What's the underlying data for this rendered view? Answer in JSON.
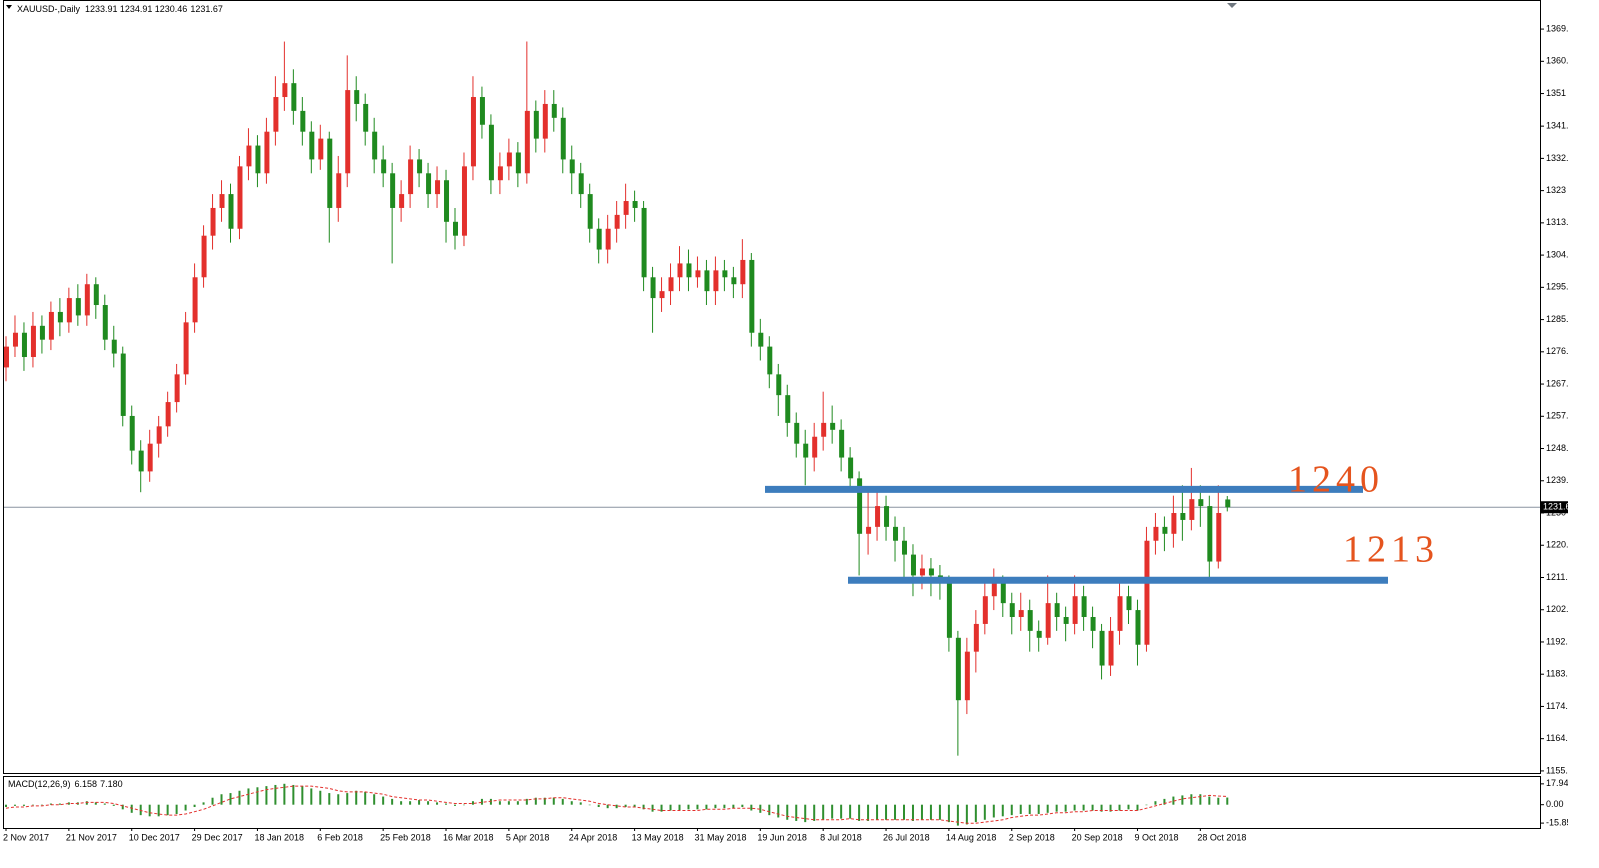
{
  "chart_data": {
    "type": "candlestick",
    "title": "XAUUSD-,Daily",
    "categories": [
      "2 Nov 2017",
      null,
      null,
      null,
      null,
      null,
      null,
      "21 Nov 2017",
      null,
      null,
      null,
      null,
      null,
      null,
      "10 Dec 2017",
      null,
      null,
      null,
      null,
      null,
      null,
      "29 Dec 2017",
      null,
      null,
      null,
      null,
      null,
      null,
      "18 Jan 2018",
      null,
      null,
      null,
      null,
      null,
      null,
      "6 Feb 2018",
      null,
      null,
      null,
      null,
      null,
      null,
      "25 Feb 2018",
      null,
      null,
      null,
      null,
      null,
      null,
      "16 Mar 2018",
      null,
      null,
      null,
      null,
      null,
      null,
      "5 Apr 2018",
      null,
      null,
      null,
      null,
      null,
      null,
      "24 Apr 2018",
      null,
      null,
      null,
      null,
      null,
      null,
      "13 May 2018",
      null,
      null,
      null,
      null,
      null,
      null,
      "31 May 2018",
      null,
      null,
      null,
      null,
      null,
      null,
      "19 Jun 2018",
      null,
      null,
      null,
      null,
      null,
      null,
      "8 Jul 2018",
      null,
      null,
      null,
      null,
      null,
      null,
      "26 Jul 2018",
      null,
      null,
      null,
      null,
      null,
      null,
      "14 Aug 2018",
      null,
      null,
      null,
      null,
      null,
      null,
      "2 Sep 2018",
      null,
      null,
      null,
      null,
      null,
      null,
      "20 Sep 2018",
      null,
      null,
      null,
      null,
      null,
      null,
      "9 Oct 2018",
      null,
      null,
      null,
      null,
      null,
      null,
      "28 Oct 2018",
      null,
      null,
      null
    ],
    "open": [
      1272,
      1278,
      1282,
      1275,
      1284,
      1280,
      1288,
      1285,
      1292,
      1287,
      1296,
      1290,
      1280,
      1276,
      1258,
      1248,
      1242,
      1250,
      1255,
      1262,
      1270,
      1285,
      1298,
      1310,
      1318,
      1322,
      1312,
      1330,
      1336,
      1328,
      1340,
      1350,
      1354,
      1346,
      1340,
      1332,
      1338,
      1318,
      1328,
      1352,
      1348,
      1340,
      1332,
      1328,
      1318,
      1322,
      1332,
      1328,
      1322,
      1326,
      1314,
      1310,
      1330,
      1350,
      1342,
      1326,
      1330,
      1334,
      1328,
      1346,
      1338,
      1348,
      1344,
      1332,
      1328,
      1322,
      1312,
      1306,
      1312,
      1316,
      1320,
      1318,
      1298,
      1292,
      1294,
      1298,
      1302,
      1298,
      1300,
      1294,
      1300,
      1298,
      1296,
      1303,
      1282,
      1278,
      1270,
      1264,
      1256,
      1250,
      1246,
      1252,
      1256,
      1254,
      1246,
      1240,
      1224,
      1226,
      1232,
      1226,
      1222,
      1218,
      1212,
      1214,
      1212,
      1210,
      1194,
      1176,
      1190,
      1198,
      1206,
      1210,
      1204,
      1200,
      1202,
      1196,
      1194,
      1204,
      1200,
      1198,
      1206,
      1200,
      1196,
      1186,
      1196,
      1206,
      1202,
      1192,
      1222,
      1226,
      1224,
      1230,
      1228,
      1234,
      1232,
      1216,
      1233.91
    ],
    "high": [
      1281,
      1287,
      1285,
      1288,
      1287,
      1291,
      1292,
      1295,
      1296,
      1299,
      1298,
      1293,
      1284,
      1278,
      1261,
      1251,
      1254,
      1258,
      1265,
      1273,
      1288,
      1302,
      1313,
      1322,
      1326,
      1325,
      1333,
      1341,
      1339,
      1344,
      1356,
      1366,
      1358,
      1350,
      1343,
      1342,
      1340,
      1333,
      1362,
      1356,
      1351,
      1344,
      1336,
      1331,
      1326,
      1336,
      1335,
      1331,
      1330,
      1329,
      1318,
      1334,
      1356,
      1353,
      1345,
      1334,
      1338,
      1337,
      1366,
      1349,
      1352,
      1352,
      1347,
      1336,
      1331,
      1325,
      1315,
      1316,
      1320,
      1325,
      1323,
      1320,
      1301,
      1298,
      1302,
      1307,
      1306,
      1304,
      1303,
      1304,
      1303,
      1301,
      1309,
      1305,
      1286,
      1281,
      1273,
      1267,
      1259,
      1254,
      1256,
      1265,
      1261,
      1257,
      1249,
      1242,
      1236,
      1237,
      1235,
      1229,
      1226,
      1221,
      1218,
      1217,
      1215,
      1212,
      1196,
      1194,
      1202,
      1210,
      1214,
      1212,
      1207,
      1207,
      1205,
      1199,
      1212,
      1207,
      1203,
      1212,
      1209,
      1203,
      1198,
      1200,
      1210,
      1209,
      1205,
      1226,
      1230,
      1229,
      1235,
      1238,
      1243,
      1238,
      1235,
      1238,
      1234.91
    ],
    "low": [
      1268,
      1275,
      1271,
      1272,
      1276,
      1277,
      1281,
      1282,
      1284,
      1284,
      1286,
      1277,
      1272,
      1255,
      1244,
      1236,
      1239,
      1246,
      1252,
      1259,
      1267,
      1282,
      1295,
      1306,
      1314,
      1308,
      1309,
      1326,
      1324,
      1325,
      1336,
      1346,
      1342,
      1336,
      1328,
      1329,
      1308,
      1314,
      1324,
      1343,
      1336,
      1328,
      1324,
      1302,
      1314,
      1318,
      1324,
      1318,
      1318,
      1308,
      1306,
      1307,
      1326,
      1338,
      1322,
      1322,
      1326,
      1324,
      1325,
      1334,
      1334,
      1340,
      1328,
      1322,
      1318,
      1308,
      1302,
      1302,
      1308,
      1312,
      1314,
      1294,
      1282,
      1288,
      1290,
      1294,
      1294,
      1295,
      1290,
      1290,
      1294,
      1292,
      1292,
      1278,
      1274,
      1266,
      1258,
      1252,
      1246,
      1238,
      1242,
      1248,
      1250,
      1242,
      1236,
      1212,
      1218,
      1222,
      1222,
      1216,
      1210,
      1206,
      1208,
      1206,
      1205,
      1190,
      1160,
      1172,
      1184,
      1195,
      1202,
      1200,
      1195,
      1196,
      1190,
      1190,
      1192,
      1196,
      1193,
      1195,
      1196,
      1191,
      1182,
      1183,
      1192,
      1198,
      1186,
      1190,
      1218,
      1219,
      1220,
      1222,
      1225,
      1226,
      1210,
      1214,
      1230.46
    ],
    "close": [
      1278,
      1282,
      1275,
      1284,
      1280,
      1288,
      1285,
      1292,
      1287,
      1296,
      1290,
      1280,
      1276,
      1258,
      1248,
      1242,
      1250,
      1255,
      1262,
      1270,
      1285,
      1298,
      1310,
      1318,
      1322,
      1312,
      1330,
      1336,
      1328,
      1340,
      1350,
      1354,
      1346,
      1340,
      1332,
      1338,
      1318,
      1328,
      1352,
      1348,
      1340,
      1332,
      1328,
      1318,
      1322,
      1332,
      1328,
      1322,
      1326,
      1314,
      1310,
      1330,
      1350,
      1342,
      1326,
      1330,
      1334,
      1328,
      1346,
      1338,
      1348,
      1344,
      1332,
      1328,
      1322,
      1312,
      1306,
      1312,
      1316,
      1320,
      1318,
      1298,
      1292,
      1294,
      1298,
      1302,
      1298,
      1300,
      1294,
      1300,
      1298,
      1296,
      1303,
      1282,
      1278,
      1270,
      1264,
      1256,
      1250,
      1246,
      1252,
      1256,
      1254,
      1246,
      1240,
      1224,
      1226,
      1232,
      1226,
      1222,
      1218,
      1212,
      1214,
      1212,
      1210,
      1194,
      1176,
      1190,
      1198,
      1206,
      1210,
      1204,
      1200,
      1202,
      1196,
      1194,
      1204,
      1200,
      1198,
      1206,
      1200,
      1196,
      1186,
      1196,
      1206,
      1202,
      1192,
      1222,
      1226,
      1224,
      1230,
      1228,
      1234,
      1232,
      1216,
      1230,
      1231.67
    ],
    "up_color": "#e3302c",
    "down_color": "#1f8a1f",
    "ylim": [
      1155.0,
      1377.7
    ],
    "yticks": [
      1155.6,
      1164.9,
      1174.2,
      1183.5,
      1192.8,
      1202.1,
      1211.4,
      1220.7,
      1230.0,
      1239.3,
      1248.6,
      1257.9,
      1267.2,
      1276.5,
      1285.8,
      1295.1,
      1304.4,
      1313.7,
      1323.0,
      1332.3,
      1341.6,
      1351.0,
      1360.3,
      1369.6
    ],
    "levels": {
      "values": [
        1236.8,
        1210.6
      ],
      "color": "#3d7dbd"
    },
    "annotations": [
      "1240",
      "1213"
    ],
    "annotation_color": "#e5541e",
    "price_line_color": "#8a93a0",
    "macd": {
      "title": "MACD(12,26,9)",
      "histogram": {
        "color": "#2f8f2f",
        "values": [
          -2,
          -1,
          -1,
          0,
          0,
          1,
          1,
          2,
          2,
          3,
          2,
          1,
          -1,
          -4,
          -7,
          -9,
          -10,
          -10,
          -9,
          -8,
          -5,
          -2,
          2,
          6,
          9,
          10,
          12,
          14,
          15,
          16,
          17,
          18,
          17,
          16,
          14,
          12,
          10,
          9,
          10,
          12,
          11,
          9,
          7,
          5,
          3,
          3,
          4,
          3,
          2,
          1,
          -1,
          0,
          3,
          5,
          5,
          3,
          3,
          3,
          5,
          6,
          6,
          6,
          5,
          3,
          2,
          0,
          -2,
          -3,
          -3,
          -2,
          -2,
          -4,
          -6,
          -6,
          -5,
          -5,
          -4,
          -4,
          -4,
          -3,
          -3,
          -3,
          -2,
          -5,
          -7,
          -9,
          -11,
          -13,
          -14,
          -15,
          -14,
          -13,
          -12,
          -12,
          -12,
          -14,
          -14,
          -13,
          -13,
          -13,
          -13,
          -14,
          -13,
          -13,
          -13,
          -15,
          -18,
          -17,
          -15,
          -13,
          -11,
          -10,
          -9,
          -8,
          -8,
          -8,
          -7,
          -6,
          -6,
          -5,
          -5,
          -5,
          -6,
          -6,
          -5,
          -4,
          -5,
          0,
          3,
          5,
          7,
          8,
          9,
          9,
          7,
          6,
          6.158
        ]
      },
      "signal": {
        "color": "#e3302c",
        "values": [
          -3,
          -2,
          -2,
          -1,
          -1,
          0,
          0,
          1,
          1,
          2,
          2,
          2,
          1,
          -1,
          -3,
          -5,
          -7,
          -8,
          -9,
          -9,
          -8,
          -6,
          -4,
          -1,
          2,
          5,
          7,
          9,
          11,
          13,
          14,
          15,
          16,
          16,
          16,
          15,
          14,
          12,
          11,
          11,
          11,
          10,
          9,
          7,
          6,
          5,
          4,
          4,
          3,
          2,
          1,
          1,
          1,
          2,
          3,
          4,
          4,
          4,
          4,
          5,
          5,
          6,
          6,
          5,
          4,
          3,
          1,
          0,
          -1,
          -2,
          -2,
          -3,
          -4,
          -5,
          -5,
          -5,
          -5,
          -5,
          -4,
          -4,
          -4,
          -3,
          -3,
          -3,
          -4,
          -6,
          -8,
          -10,
          -11,
          -12,
          -13,
          -13,
          -13,
          -13,
          -12,
          -13,
          -13,
          -13,
          -13,
          -13,
          -13,
          -13,
          -13,
          -13,
          -13,
          -14,
          -15,
          -16,
          -16,
          -15,
          -14,
          -13,
          -11,
          -10,
          -9,
          -9,
          -8,
          -7,
          -7,
          -6,
          -6,
          -5,
          -5,
          -5,
          -5,
          -5,
          -5,
          -3,
          -1,
          1,
          3,
          5,
          6,
          7,
          8,
          7.5,
          7.18
        ],
        "value_labels": [
          null,
          null,
          null,
          null,
          null,
          null,
          null,
          null,
          null,
          null,
          null,
          null,
          null,
          null,
          null,
          null,
          null,
          null,
          null,
          null,
          null,
          null,
          null,
          null,
          null,
          null,
          null,
          null,
          null,
          null,
          null,
          null,
          null,
          null,
          null,
          null,
          null,
          null,
          null,
          null,
          null,
          null,
          null,
          null,
          null,
          null,
          null,
          null,
          null,
          null,
          null,
          null,
          null,
          null,
          null,
          null,
          null,
          null,
          null,
          null,
          null,
          null,
          null,
          null,
          null,
          null,
          null,
          null,
          null,
          null,
          null,
          null,
          null,
          null,
          null,
          null,
          null,
          null,
          null,
          null,
          null,
          null,
          null,
          null,
          null,
          null,
          null,
          null,
          null,
          null,
          null,
          null,
          null,
          null,
          null,
          null,
          null,
          null,
          null,
          null,
          null,
          null,
          null,
          null,
          null,
          null,
          null,
          null,
          null,
          null,
          null,
          null,
          null,
          null,
          null,
          null,
          null,
          null,
          null,
          null,
          null,
          null,
          null,
          null,
          null,
          null,
          null,
          null,
          null,
          null,
          null,
          null,
          null,
          null,
          null,
          null,
          "7.180"
        ]
      },
      "ylim": [
        -20.07,
        23.85
      ],
      "yticks": [
        17.94,
        {
          "value": 0,
          "label": "0.00"
        },
        -15.85
      ]
    }
  }
}
